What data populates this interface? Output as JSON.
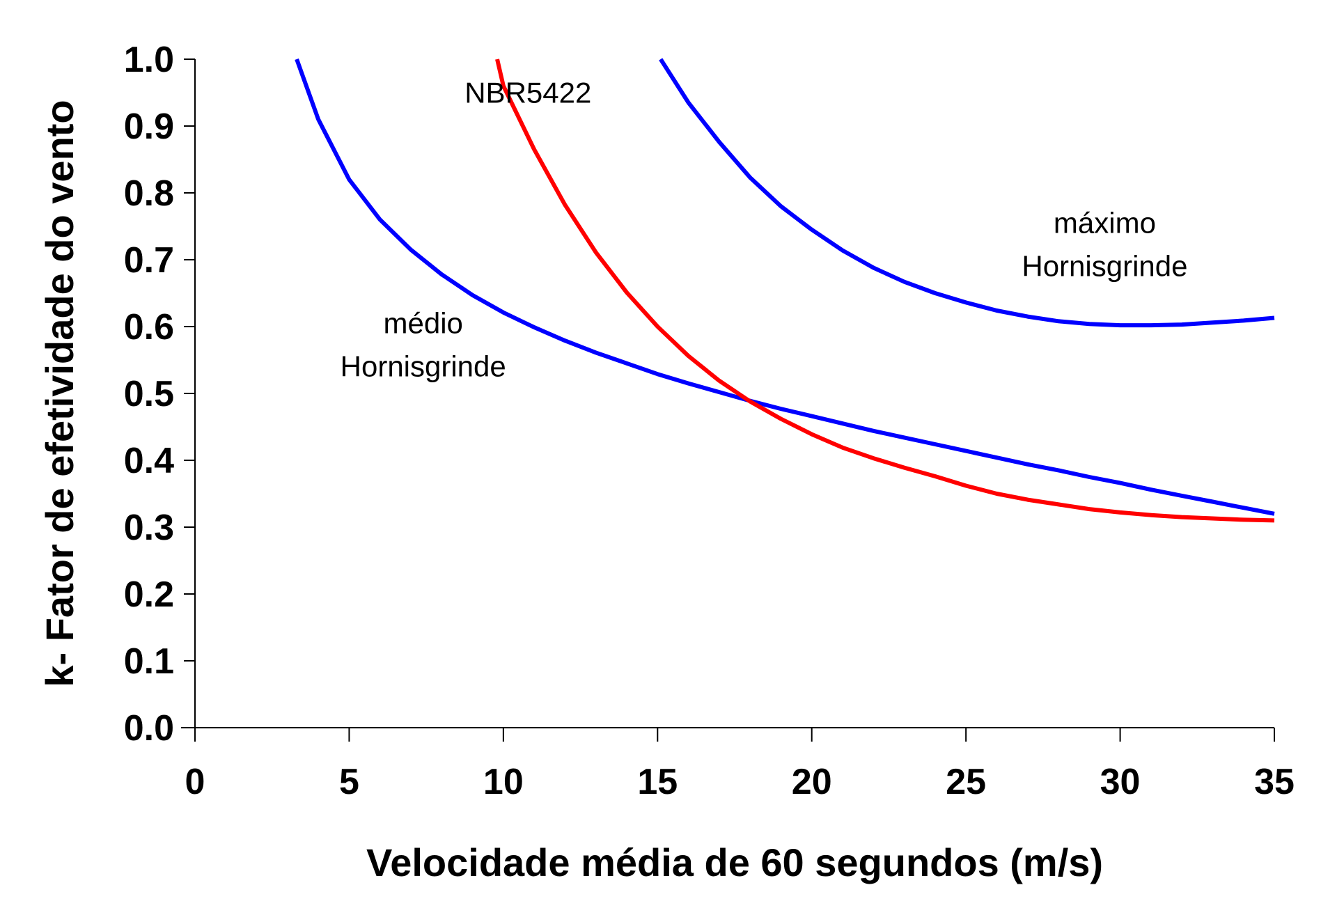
{
  "chart_data": {
    "type": "line",
    "xlabel": "Velocidade média de 60 segundos (m/s)",
    "ylabel": "k- Fator de efetividade do vento",
    "xlim": [
      0,
      35
    ],
    "ylim": [
      0.0,
      1.0
    ],
    "xticks": [
      "0",
      "5",
      "10",
      "15",
      "20",
      "25",
      "30",
      "35"
    ],
    "yticks": [
      "0.0",
      "0.1",
      "0.2",
      "0.3",
      "0.4",
      "0.5",
      "0.6",
      "0.7",
      "0.8",
      "0.9",
      "1.0"
    ],
    "grid": false,
    "legend": "none",
    "series": [
      {
        "name": "médio Hornisgrinde",
        "color": "#0000ff",
        "x": [
          3.3,
          4,
          5,
          6,
          7,
          8,
          9,
          10,
          11,
          12,
          13,
          14,
          15,
          16,
          17,
          18,
          19,
          20,
          21,
          22,
          23,
          24,
          25,
          26,
          27,
          28,
          29,
          30,
          31,
          32,
          33,
          34,
          35
        ],
        "y": [
          1.0,
          0.91,
          0.82,
          0.76,
          0.715,
          0.678,
          0.647,
          0.621,
          0.599,
          0.579,
          0.561,
          0.545,
          0.529,
          0.515,
          0.502,
          0.489,
          0.477,
          0.466,
          0.455,
          0.444,
          0.434,
          0.424,
          0.414,
          0.404,
          0.394,
          0.385,
          0.375,
          0.366,
          0.356,
          0.347,
          0.338,
          0.329,
          0.32
        ]
      },
      {
        "name": "NBR5422",
        "color": "#ff0000",
        "x": [
          9.8,
          10,
          11,
          12,
          13,
          14,
          15,
          16,
          17,
          18,
          19,
          20,
          21,
          22,
          23,
          24,
          25,
          26,
          27,
          28,
          29,
          30,
          31,
          32,
          33,
          34,
          35
        ],
        "y": [
          1.0,
          0.96,
          0.865,
          0.782,
          0.711,
          0.651,
          0.6,
          0.556,
          0.519,
          0.488,
          0.462,
          0.439,
          0.419,
          0.403,
          0.389,
          0.376,
          0.362,
          0.35,
          0.341,
          0.334,
          0.327,
          0.322,
          0.318,
          0.315,
          0.313,
          0.311,
          0.31
        ]
      },
      {
        "name": "máximo Hornisgrinde",
        "color": "#0000ff",
        "x": [
          15.1,
          16,
          17,
          18,
          19,
          20,
          21,
          22,
          23,
          24,
          25,
          26,
          27,
          28,
          29,
          30,
          31,
          32,
          33,
          34,
          35
        ],
        "y": [
          1.0,
          0.935,
          0.876,
          0.823,
          0.78,
          0.745,
          0.714,
          0.688,
          0.667,
          0.65,
          0.636,
          0.624,
          0.615,
          0.608,
          0.604,
          0.602,
          0.602,
          0.603,
          0.606,
          0.609,
          0.613
        ]
      }
    ],
    "annotations": [
      {
        "lines": [
          "NBR5422"
        ],
        "x": 10.8,
        "y": 0.935
      },
      {
        "lines": [
          "médio",
          "Hornisgrinde"
        ],
        "x": 7.4,
        "y": 0.59
      },
      {
        "lines": [
          "máximo",
          "Hornisgrinde"
        ],
        "x": 29.5,
        "y": 0.74
      }
    ]
  }
}
